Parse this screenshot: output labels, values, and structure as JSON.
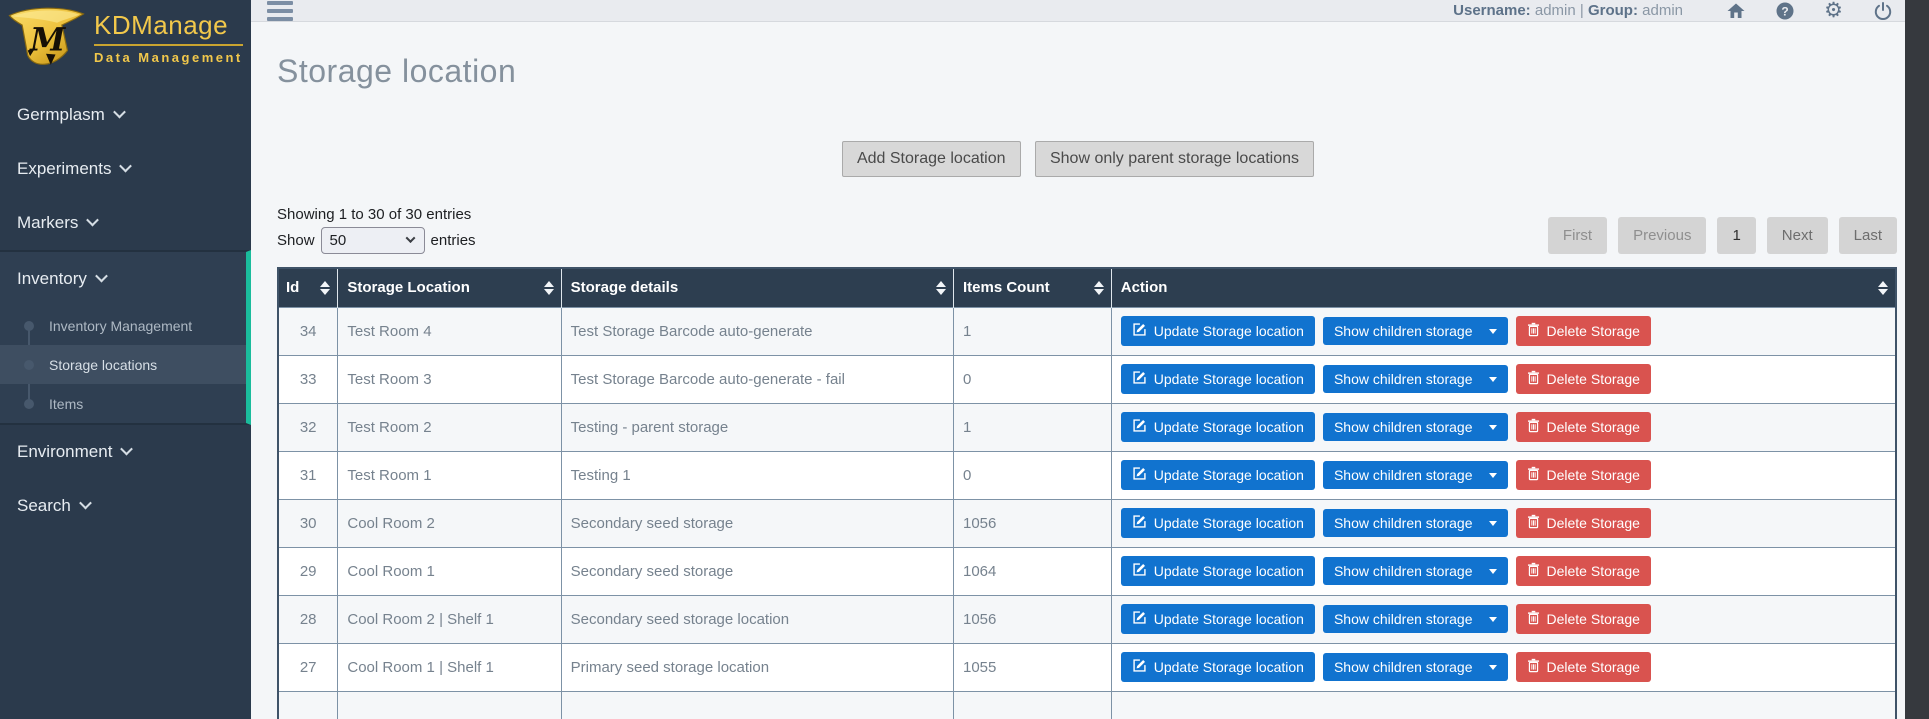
{
  "brand": {
    "title": "KDManage",
    "subtitle": "Data Management"
  },
  "topbar": {
    "username_label": "Username:",
    "username_value": "admin",
    "separator": "|",
    "group_label": "Group:",
    "group_value": "admin",
    "icons": [
      "home-icon",
      "help-icon",
      "settings-icon",
      "power-icon"
    ]
  },
  "sidebar": {
    "accent_color": "#1abc9c",
    "background_color": "#2b3a4c",
    "items": [
      {
        "label": "Germplasm",
        "expanded": false
      },
      {
        "label": "Experiments",
        "expanded": false
      },
      {
        "label": "Markers",
        "expanded": false
      },
      {
        "label": "Inventory",
        "expanded": true,
        "children": [
          {
            "label": "Inventory Management",
            "active": false
          },
          {
            "label": "Storage locations",
            "active": true
          },
          {
            "label": "Items",
            "active": false
          }
        ]
      },
      {
        "label": "Environment",
        "expanded": false
      },
      {
        "label": "Search",
        "expanded": false
      }
    ]
  },
  "page": {
    "title": "Storage location",
    "add_button": "Add Storage location",
    "parent_button": "Show only parent storage locations",
    "summary": "Showing 1 to 30 of 30 entries",
    "show_label": "Show",
    "page_size": "50",
    "entries_label": "entries",
    "pagination": [
      {
        "label": "First",
        "state": "dim"
      },
      {
        "label": "Previous",
        "state": "dim"
      },
      {
        "label": "1",
        "state": "current"
      },
      {
        "label": "Next",
        "state": "normal"
      },
      {
        "label": "Last",
        "state": "normal"
      }
    ]
  },
  "table": {
    "columns": [
      "Id",
      "Storage Location",
      "Storage details",
      "Items Count",
      "Action"
    ],
    "actions": {
      "update": "Update Storage location",
      "children": "Show children storage",
      "delete": "Delete Storage"
    },
    "rows": [
      {
        "id": "34",
        "location": "Test Room 4",
        "details": "Test Storage Barcode auto-generate",
        "count": "1"
      },
      {
        "id": "33",
        "location": "Test Room 3",
        "details": "Test Storage Barcode auto-generate - fail",
        "count": "0"
      },
      {
        "id": "32",
        "location": "Test Room 2",
        "details": "Testing - parent storage",
        "count": "1"
      },
      {
        "id": "31",
        "location": "Test Room 1",
        "details": "Testing 1",
        "count": "0"
      },
      {
        "id": "30",
        "location": "Cool Room 2",
        "details": "Secondary seed storage",
        "count": "1056"
      },
      {
        "id": "29",
        "location": "Cool Room 1",
        "details": "Secondary seed storage",
        "count": "1064"
      },
      {
        "id": "28",
        "location": "Cool Room 2 | Shelf 1",
        "details": "Secondary seed storage location",
        "count": "1056"
      },
      {
        "id": "27",
        "location": "Cool Room 1 | Shelf 1",
        "details": "Primary seed storage location",
        "count": "1055"
      }
    ]
  },
  "colors": {
    "brand_gold": "#f2c84b",
    "accent_teal": "#1abc9c",
    "primary_blue": "#1173cf",
    "danger_red": "#d9534f",
    "table_header": "#2d3e50"
  }
}
